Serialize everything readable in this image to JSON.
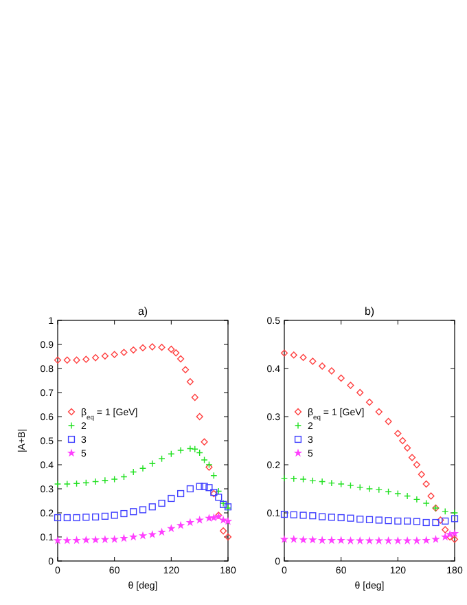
{
  "chart_data": [
    {
      "type": "scatter",
      "title": "a)",
      "xlabel": "θ [deg]",
      "ylabel": "|A+B|",
      "xlim": [
        0,
        180
      ],
      "xticks": [
        0,
        60,
        120,
        180
      ],
      "ylim": [
        0,
        1
      ],
      "yticks": [
        0,
        0.1,
        0.2,
        0.3,
        0.4,
        0.5,
        0.6,
        0.7,
        0.8,
        0.9,
        1
      ],
      "legend": "left",
      "grid": false,
      "series": [
        {
          "name": "β$_{eq}$ = 1 [GeV]",
          "color": "#ff4040",
          "marker": "diamond",
          "x": [
            0,
            10,
            20,
            30,
            40,
            50,
            60,
            70,
            80,
            90,
            100,
            110,
            120,
            125,
            130,
            135,
            140,
            145,
            150,
            155,
            160,
            165,
            170,
            175,
            180
          ],
          "values": [
            0.835,
            0.835,
            0.835,
            0.838,
            0.845,
            0.852,
            0.858,
            0.867,
            0.877,
            0.886,
            0.89,
            0.888,
            0.88,
            0.865,
            0.84,
            0.795,
            0.745,
            0.68,
            0.6,
            0.495,
            0.39,
            0.28,
            0.19,
            0.125,
            0.1
          ]
        },
        {
          "name": "2",
          "color": "#20e020",
          "marker": "cross",
          "x": [
            0,
            10,
            20,
            30,
            40,
            50,
            60,
            70,
            80,
            90,
            100,
            110,
            120,
            130,
            140,
            145,
            150,
            155,
            160,
            165,
            170,
            175,
            180
          ],
          "values": [
            0.32,
            0.32,
            0.322,
            0.325,
            0.33,
            0.335,
            0.34,
            0.35,
            0.37,
            0.385,
            0.405,
            0.425,
            0.445,
            0.46,
            0.467,
            0.465,
            0.45,
            0.42,
            0.4,
            0.355,
            0.29,
            0.24,
            0.22
          ]
        },
        {
          "name": "3",
          "color": "#4040ff",
          "marker": "square",
          "x": [
            0,
            10,
            20,
            30,
            40,
            50,
            60,
            70,
            80,
            90,
            100,
            110,
            120,
            130,
            140,
            150,
            155,
            160,
            165,
            170,
            175,
            180
          ],
          "values": [
            0.18,
            0.18,
            0.18,
            0.182,
            0.183,
            0.186,
            0.19,
            0.197,
            0.205,
            0.213,
            0.225,
            0.24,
            0.26,
            0.28,
            0.3,
            0.31,
            0.31,
            0.305,
            0.285,
            0.265,
            0.235,
            0.225
          ]
        },
        {
          "name": "5",
          "color": "#ff40ff",
          "marker": "star",
          "x": [
            0,
            10,
            20,
            30,
            40,
            50,
            60,
            70,
            80,
            90,
            100,
            110,
            120,
            130,
            140,
            150,
            160,
            165,
            170,
            175,
            180
          ],
          "values": [
            0.085,
            0.085,
            0.086,
            0.087,
            0.088,
            0.089,
            0.09,
            0.094,
            0.1,
            0.105,
            0.11,
            0.12,
            0.135,
            0.148,
            0.16,
            0.17,
            0.178,
            0.18,
            0.185,
            0.17,
            0.165
          ]
        }
      ]
    },
    {
      "type": "scatter",
      "title": "b)",
      "xlabel": "θ [deg]",
      "xlim": [
        0,
        180
      ],
      "xticks": [
        0,
        60,
        120,
        180
      ],
      "ylim": [
        0,
        0.5
      ],
      "yticks": [
        0,
        0.1,
        0.2,
        0.3,
        0.4,
        0.5
      ],
      "legend": "left",
      "grid": false,
      "series": [
        {
          "name": "β$_{eq}$ = 1 [GeV]",
          "color": "#ff4040",
          "marker": "diamond",
          "x": [
            0,
            10,
            20,
            30,
            40,
            50,
            60,
            70,
            80,
            90,
            100,
            110,
            120,
            125,
            130,
            135,
            140,
            145,
            150,
            155,
            160,
            165,
            170,
            175,
            180
          ],
          "values": [
            0.432,
            0.428,
            0.423,
            0.415,
            0.405,
            0.395,
            0.38,
            0.365,
            0.35,
            0.33,
            0.31,
            0.29,
            0.265,
            0.25,
            0.235,
            0.215,
            0.2,
            0.18,
            0.16,
            0.135,
            0.11,
            0.085,
            0.065,
            0.05,
            0.045
          ]
        },
        {
          "name": "2",
          "color": "#20e020",
          "marker": "cross",
          "x": [
            0,
            10,
            20,
            30,
            40,
            50,
            60,
            70,
            80,
            90,
            100,
            110,
            120,
            130,
            140,
            150,
            160,
            170,
            180
          ],
          "values": [
            0.172,
            0.171,
            0.17,
            0.167,
            0.165,
            0.162,
            0.16,
            0.157,
            0.153,
            0.15,
            0.148,
            0.144,
            0.14,
            0.135,
            0.128,
            0.12,
            0.11,
            0.103,
            0.1
          ]
        },
        {
          "name": "3",
          "color": "#4040ff",
          "marker": "square",
          "x": [
            0,
            10,
            20,
            30,
            40,
            50,
            60,
            70,
            80,
            90,
            100,
            110,
            120,
            130,
            140,
            150,
            160,
            170,
            180
          ],
          "values": [
            0.097,
            0.096,
            0.095,
            0.094,
            0.092,
            0.091,
            0.09,
            0.089,
            0.087,
            0.086,
            0.085,
            0.084,
            0.083,
            0.083,
            0.082,
            0.08,
            0.08,
            0.083,
            0.088
          ]
        },
        {
          "name": "5",
          "color": "#ff40ff",
          "marker": "star",
          "x": [
            0,
            10,
            20,
            30,
            40,
            50,
            60,
            70,
            80,
            90,
            100,
            110,
            120,
            130,
            140,
            150,
            160,
            170,
            175,
            180
          ],
          "values": [
            0.045,
            0.045,
            0.044,
            0.044,
            0.043,
            0.043,
            0.043,
            0.042,
            0.042,
            0.042,
            0.042,
            0.042,
            0.042,
            0.042,
            0.042,
            0.043,
            0.045,
            0.05,
            0.055,
            0.057
          ]
        }
      ]
    }
  ]
}
